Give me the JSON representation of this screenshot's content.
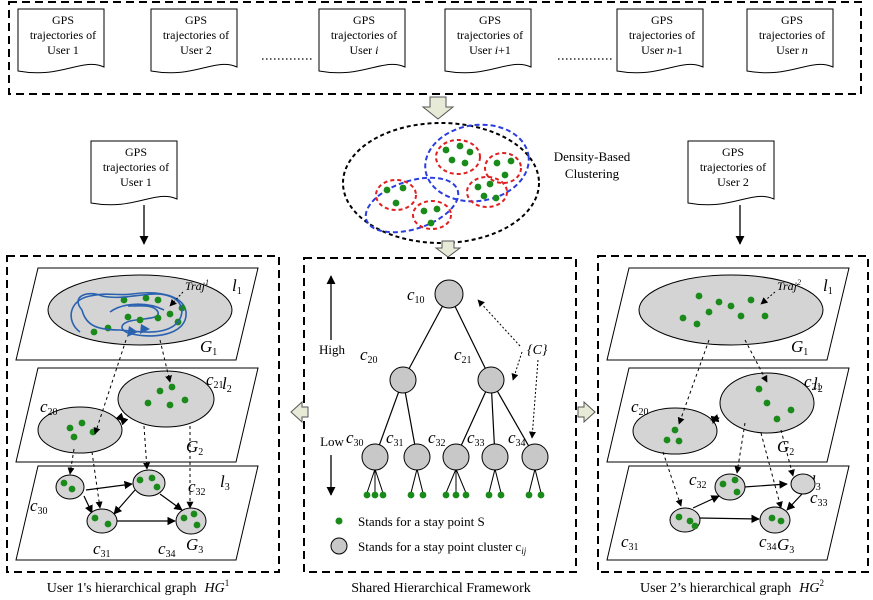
{
  "doc_label_line1": "GPS",
  "doc_label_line2": "trajectories of",
  "top_docs": [
    {
      "user": "User 1"
    },
    {
      "user": "User 2"
    },
    {
      "user": "User ",
      "user_var": "i",
      "user_suffix": ""
    },
    {
      "user": "User ",
      "user_var": "i",
      "user_suffix": "+1"
    },
    {
      "user": "User ",
      "user_var": "n",
      "user_suffix": "-1"
    },
    {
      "user": "User ",
      "user_var": "n",
      "user_suffix": ""
    }
  ],
  "side_doc_left": {
    "user": "User 1"
  },
  "side_doc_right": {
    "user": "User 2"
  },
  "clustering": {
    "line1": "Density-Based",
    "line2": "Clustering"
  },
  "center": {
    "axis_high": "High",
    "axis_low": "Low",
    "set_label": "{C}",
    "nodes": [
      "c10",
      "c20",
      "c21",
      "c30",
      "c31",
      "c32",
      "c33",
      "c34"
    ],
    "legend_point": "Stands for a stay point S",
    "legend_cluster": "Stands for a stay point cluster c",
    "legend_cluster_sub": "ij"
  },
  "left_panel": {
    "traj": "Traj",
    "traj_sup": "1",
    "levels": [
      "l1",
      "l2",
      "l3"
    ],
    "graphs": [
      "G1",
      "G2",
      "G3"
    ],
    "nodes": [
      "c20",
      "c21",
      "c30",
      "c31",
      "c32",
      "c34"
    ]
  },
  "right_panel": {
    "traj": "Traj",
    "traj_sup": "2",
    "levels": [
      "l1",
      "l2",
      "l3"
    ],
    "graphs": [
      "G1",
      "G2",
      "G3"
    ],
    "nodes": [
      "c20",
      "c21",
      "c31",
      "c32",
      "c33",
      "c34"
    ]
  },
  "captions": {
    "left": "User 1's hierarchical graph",
    "left_symbol": "HG",
    "left_sup": "1",
    "center": "Shared Hierarchical Framework",
    "right": "User 2’s hierarchical graph",
    "right_symbol": "HG",
    "right_sup": "2"
  },
  "colors": {
    "point": "#1a8a1a",
    "node": "#c8c8c8",
    "traj": "#2a62b0",
    "red": "#e02020",
    "blue": "#2a3ee0"
  }
}
